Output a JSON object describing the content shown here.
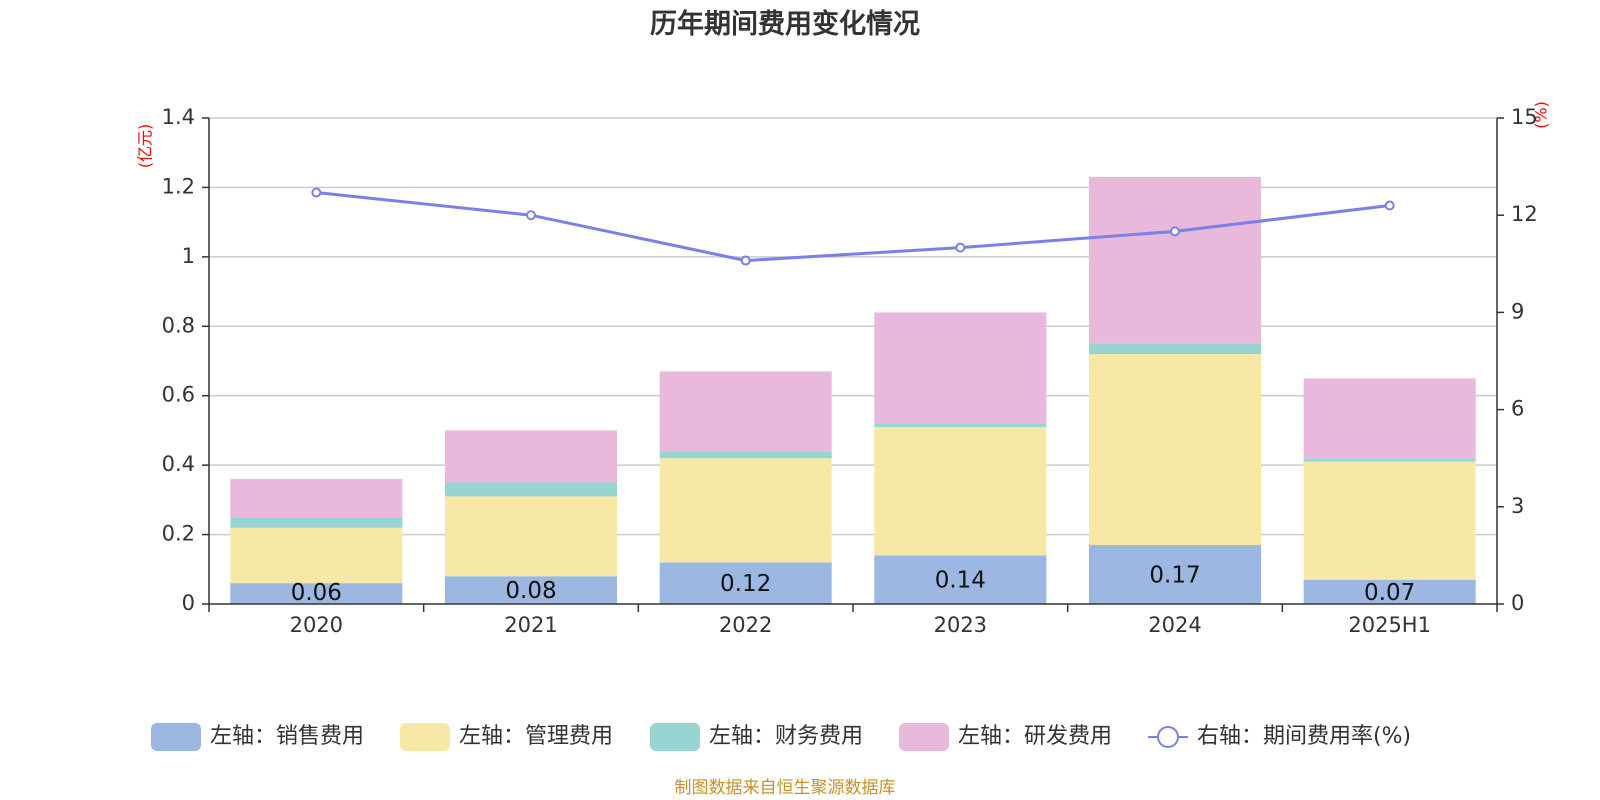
{
  "chart_data": {
    "type": "bar",
    "title": "历年期间费用变化情况",
    "categories": [
      "2020",
      "2021",
      "2022",
      "2023",
      "2024",
      "2025H1"
    ],
    "left_axis": {
      "unit": "(亿元)",
      "ylim": [
        0,
        1.4
      ],
      "ticks": [
        "0",
        "0.2",
        "0.4",
        "0.6",
        "0.8",
        "1",
        "1.2",
        "1.4"
      ]
    },
    "right_axis": {
      "unit": "(%)",
      "ylim": [
        0,
        15
      ],
      "ticks": [
        "0",
        "3",
        "6",
        "9",
        "12",
        "15"
      ]
    },
    "series": [
      {
        "name": "左轴：销售费用",
        "type": "bar",
        "color": "#9cb7e1",
        "values": [
          0.06,
          0.08,
          0.12,
          0.14,
          0.17,
          0.07
        ],
        "labels": [
          "0.06",
          "0.08",
          "0.12",
          "0.14",
          "0.17",
          "0.07"
        ]
      },
      {
        "name": "左轴：管理费用",
        "type": "bar",
        "color": "#f7e8a6",
        "values": [
          0.16,
          0.23,
          0.3,
          0.37,
          0.55,
          0.34
        ]
      },
      {
        "name": "左轴：财务费用",
        "type": "bar",
        "color": "#97d5d3",
        "values": [
          0.03,
          0.04,
          0.02,
          0.01,
          0.03,
          0.01
        ]
      },
      {
        "name": "左轴：研发费用",
        "type": "bar",
        "color": "#e8b9da",
        "values": [
          0.11,
          0.15,
          0.23,
          0.32,
          0.48,
          0.23
        ]
      },
      {
        "name": "右轴：期间费用率(%)",
        "type": "line",
        "color": "#7b7fe8",
        "values": [
          12.7,
          12.0,
          10.6,
          11.0,
          11.5,
          12.3
        ]
      }
    ],
    "grid": true,
    "legend_position": "bottom"
  },
  "source": "制图数据来自恒生聚源数据库"
}
